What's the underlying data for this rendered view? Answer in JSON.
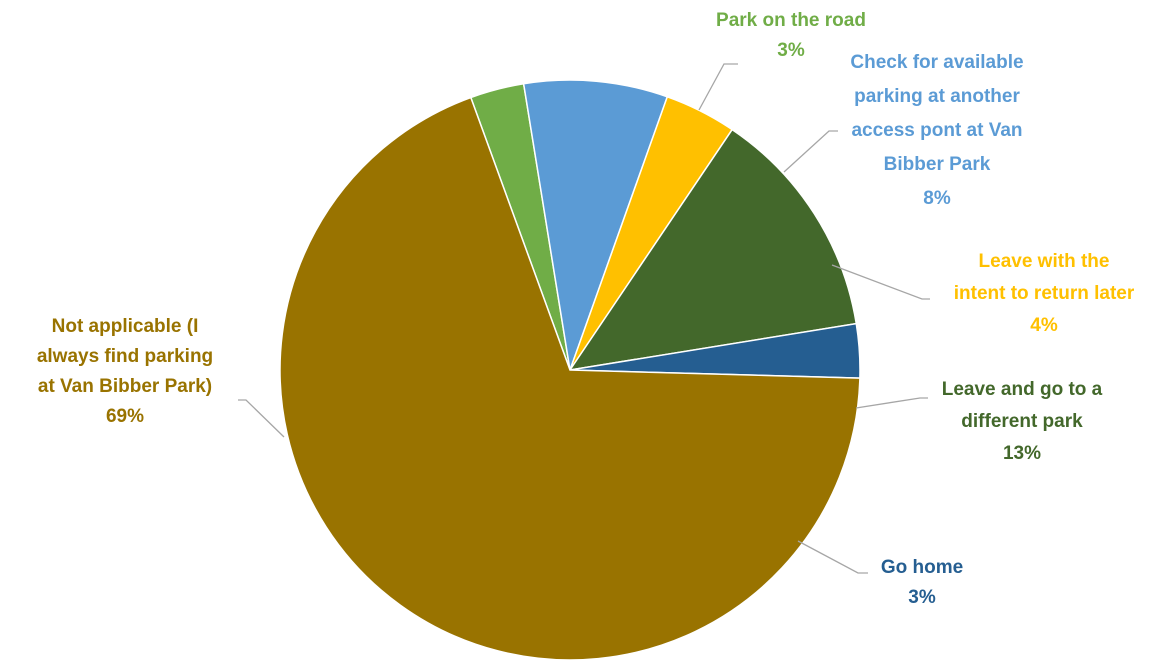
{
  "chart_data": {
    "type": "pie",
    "title": "",
    "colors": {
      "Park on the road": "#70ad47",
      "Check for available parking at another access pont at Van Bibber Park": "#5b9bd5",
      "Leave with the intent to return later": "#ffc000",
      "Leave and go to a different park": "#43682b",
      "Go home": "#255e91",
      "Not applicable (I always find parking at Van Bibber Park)": "#997300"
    },
    "slices": [
      {
        "name": "Park on the road",
        "label_lines": [
          "Park on the road"
        ],
        "value": 3,
        "percent_label": "3%"
      },
      {
        "name": "Check for available parking at another access pont at Van Bibber Park",
        "label_lines": [
          "Check for available",
          "parking at another",
          "access pont at Van",
          "Bibber Park"
        ],
        "value": 8,
        "percent_label": "8%"
      },
      {
        "name": "Leave with the intent to return later",
        "label_lines": [
          "Leave with the",
          "intent to return later"
        ],
        "value": 4,
        "percent_label": "4%"
      },
      {
        "name": "Leave and go to a different park",
        "label_lines": [
          "Leave and go to a",
          "different park"
        ],
        "value": 13,
        "percent_label": "13%"
      },
      {
        "name": "Go home",
        "label_lines": [
          "Go home"
        ],
        "value": 3,
        "percent_label": "3%"
      },
      {
        "name": "Not applicable (I always find parking at Van Bibber Park)",
        "label_lines": [
          "Not applicable (I",
          "always find parking",
          "at Van Bibber Park)"
        ],
        "value": 69,
        "percent_label": "69%"
      }
    ]
  }
}
